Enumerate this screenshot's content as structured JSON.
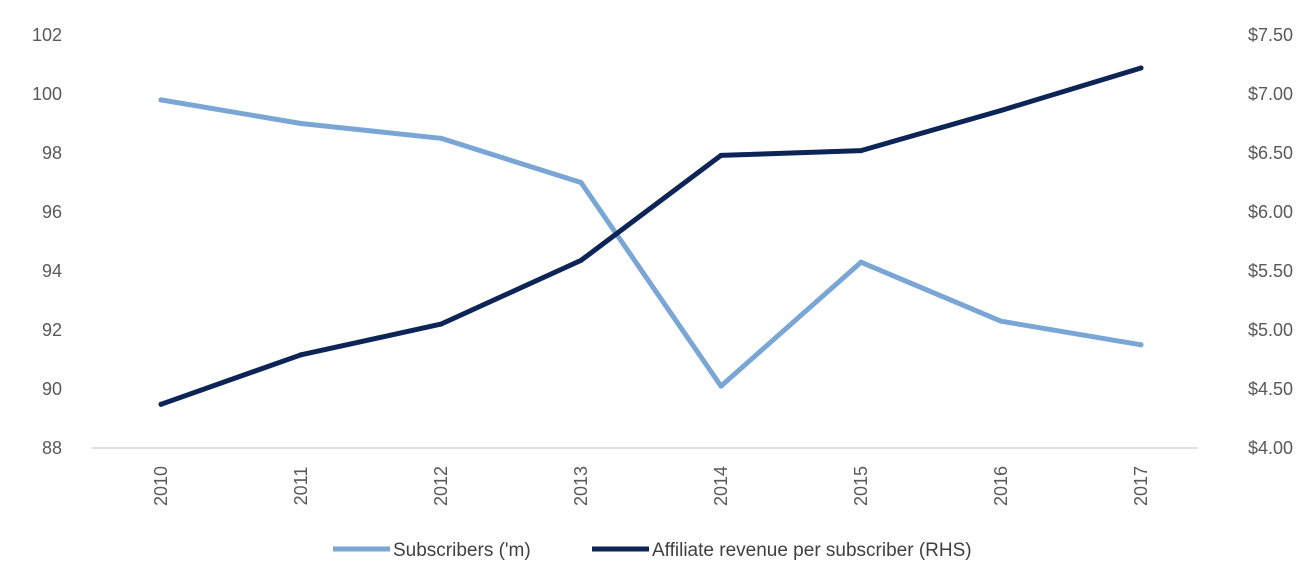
{
  "chart_data": {
    "type": "line",
    "categories": [
      "2010",
      "2011",
      "2012",
      "2013",
      "2014",
      "2015",
      "2016",
      "2017"
    ],
    "y_left": {
      "ticks": [
        "102",
        "100",
        "98",
        "96",
        "94",
        "92",
        "90",
        "88"
      ],
      "ylim": [
        88,
        102
      ]
    },
    "y_right": {
      "ticks": [
        "$7.50",
        "$7.00",
        "$6.50",
        "$6.00",
        "$5.50",
        "$5.00",
        "$4.50",
        "$4.00"
      ],
      "ylim": [
        4.0,
        7.5
      ]
    },
    "series": [
      {
        "name": "Subscribers ('m)",
        "axis": "left",
        "color": "#7aa6d6",
        "values": [
          99.8,
          99.0,
          98.5,
          97.0,
          90.1,
          94.3,
          92.3,
          91.5
        ]
      },
      {
        "name": "Affiliate revenue per subscriber (RHS)",
        "axis": "right",
        "color": "#0d2457",
        "values": [
          4.37,
          4.79,
          5.05,
          5.59,
          6.48,
          6.52,
          6.86,
          7.22
        ]
      }
    ],
    "legend_position": "bottom",
    "grid": false
  }
}
